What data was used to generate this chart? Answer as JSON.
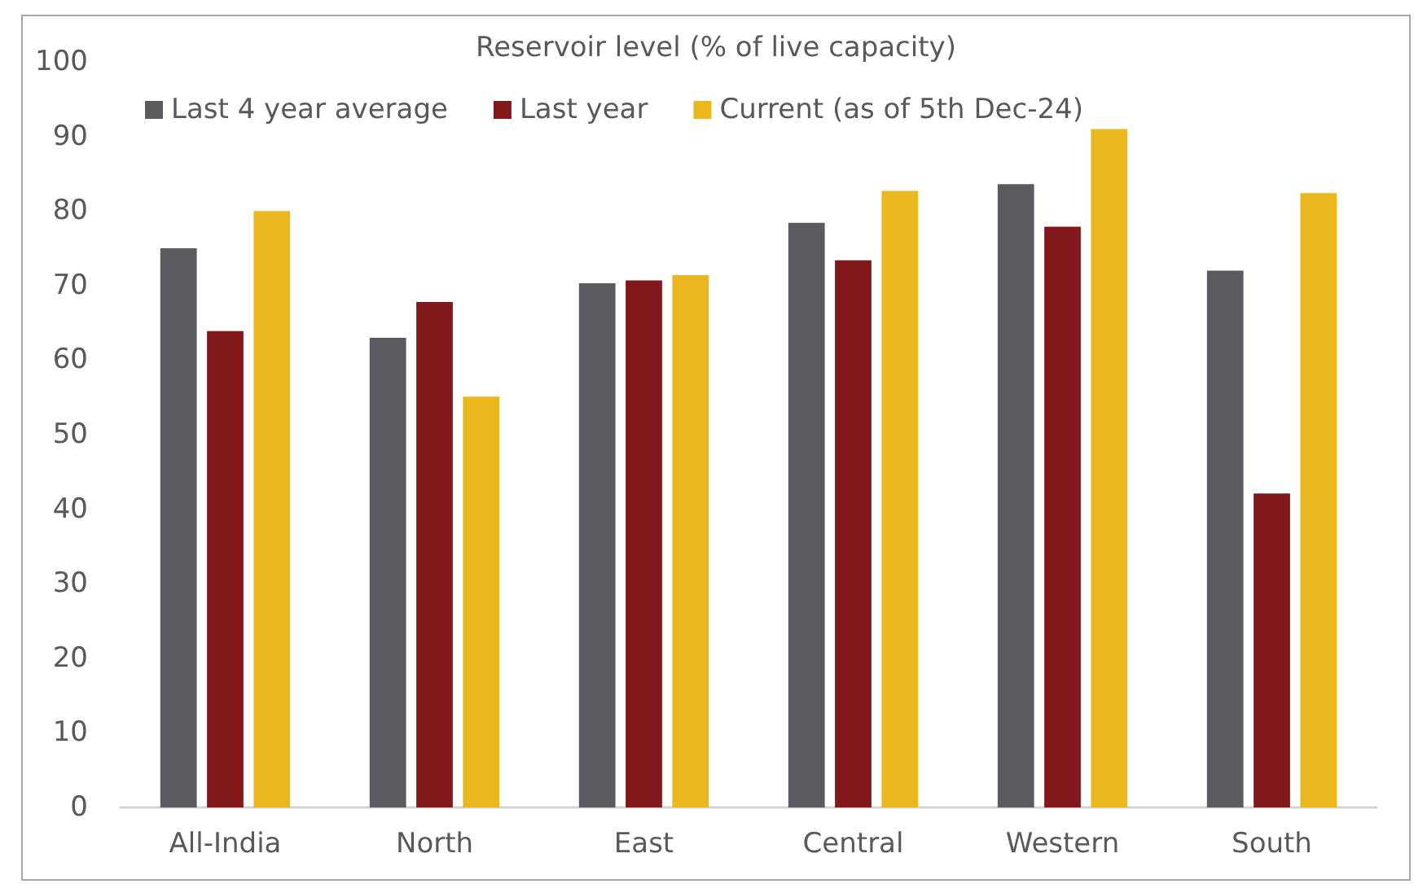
{
  "chart_data": {
    "type": "bar",
    "title": "Reservoir level (% of live capacity)",
    "categories": [
      "All-India",
      "North",
      "East",
      "Central",
      "Western",
      "South"
    ],
    "series": [
      {
        "name": "Last 4 year average",
        "color": "#5a5b5f",
        "values": [
          75.0,
          63.0,
          70.3,
          78.4,
          83.6,
          72.0
        ]
      },
      {
        "name": "Last year",
        "color": "#82181b",
        "values": [
          63.9,
          67.8,
          70.7,
          73.4,
          77.9,
          42.1
        ]
      },
      {
        "name": "Current (as of 5th Dec-24)",
        "color": "#ebb71e",
        "values": [
          80.0,
          55.1,
          71.4,
          82.7,
          91.0,
          82.4
        ]
      }
    ],
    "ylim": [
      0,
      100
    ],
    "yticks": [
      0,
      10,
      20,
      30,
      40,
      50,
      60,
      70,
      80,
      90,
      100
    ],
    "grid": false,
    "legend": "top"
  }
}
